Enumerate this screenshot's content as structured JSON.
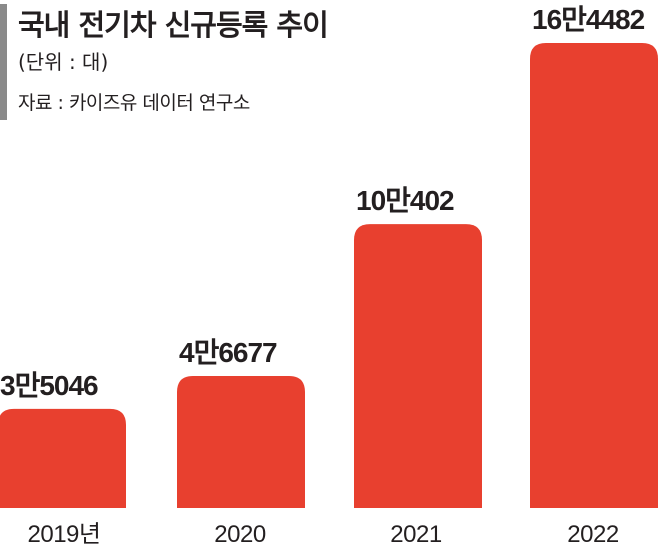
{
  "header": {
    "title": "국내 전기차 신규등록 추이",
    "unit": "(단위 : 대)",
    "source": "자료 : 카이즈유 데이터 연구소"
  },
  "colors": {
    "bar": "#e8402f",
    "accent": "#8a8a8a",
    "text": "#231f20"
  },
  "chart_data": {
    "type": "bar",
    "title": "국내 전기차 신규등록 추이",
    "categories": [
      "2019년",
      "2020",
      "2021",
      "2022"
    ],
    "values": [
      35046,
      46677,
      100402,
      164482
    ],
    "value_labels": [
      "3만5046",
      "4만6677",
      "10만402",
      "16만4482"
    ],
    "ylim": [
      0,
      164482
    ],
    "grid": false,
    "legend": "none"
  }
}
